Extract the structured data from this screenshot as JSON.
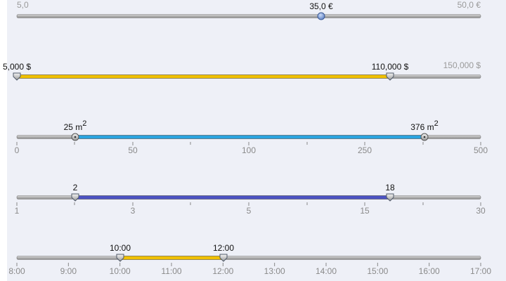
{
  "sliders": [
    {
      "min_label": "5,0",
      "max_label": "50,0 €",
      "handles": [
        "35,0 €"
      ]
    },
    {
      "max_label": "150,000 $",
      "handles": [
        "5,000 $",
        "110,000 $"
      ]
    },
    {
      "handles": [
        {
          "text": "25 m",
          "sup": "2"
        },
        {
          "text": "376 m",
          "sup": "2"
        }
      ],
      "ticks": [
        0,
        50,
        100,
        250,
        500
      ]
    },
    {
      "handles": [
        "2",
        "18"
      ],
      "ticks": [
        1,
        3,
        5,
        15,
        30
      ]
    },
    {
      "handles": [
        "10:00",
        "12:00"
      ],
      "ticks": [
        "8:00",
        "9:00",
        "10:00",
        "11:00",
        "12:00",
        "13:00",
        "14:00",
        "15:00",
        "16:00",
        "17:00"
      ]
    }
  ]
}
